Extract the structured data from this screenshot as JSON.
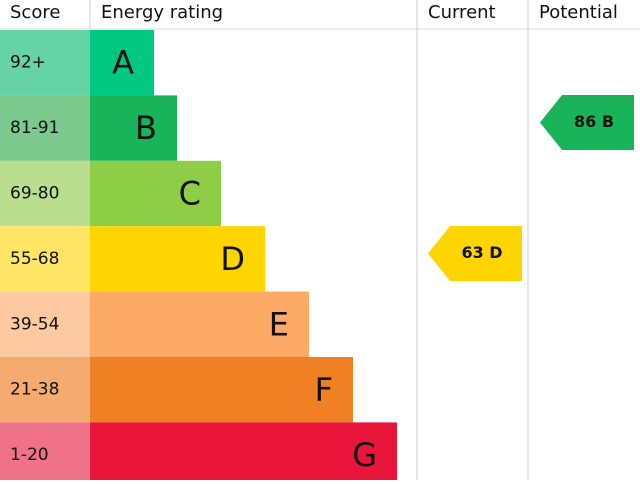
{
  "header": {
    "score": "Score",
    "rating": "Energy rating",
    "current": "Current",
    "potential": "Potential"
  },
  "bands": [
    {
      "score": "92+",
      "letter": "A"
    },
    {
      "score": "81-91",
      "letter": "B"
    },
    {
      "score": "69-80",
      "letter": "C"
    },
    {
      "score": "55-68",
      "letter": "D"
    },
    {
      "score": "39-54",
      "letter": "E"
    },
    {
      "score": "21-38",
      "letter": "F"
    },
    {
      "score": "1-20",
      "letter": "G"
    }
  ],
  "current": "63 D",
  "potential": "86 B"
}
